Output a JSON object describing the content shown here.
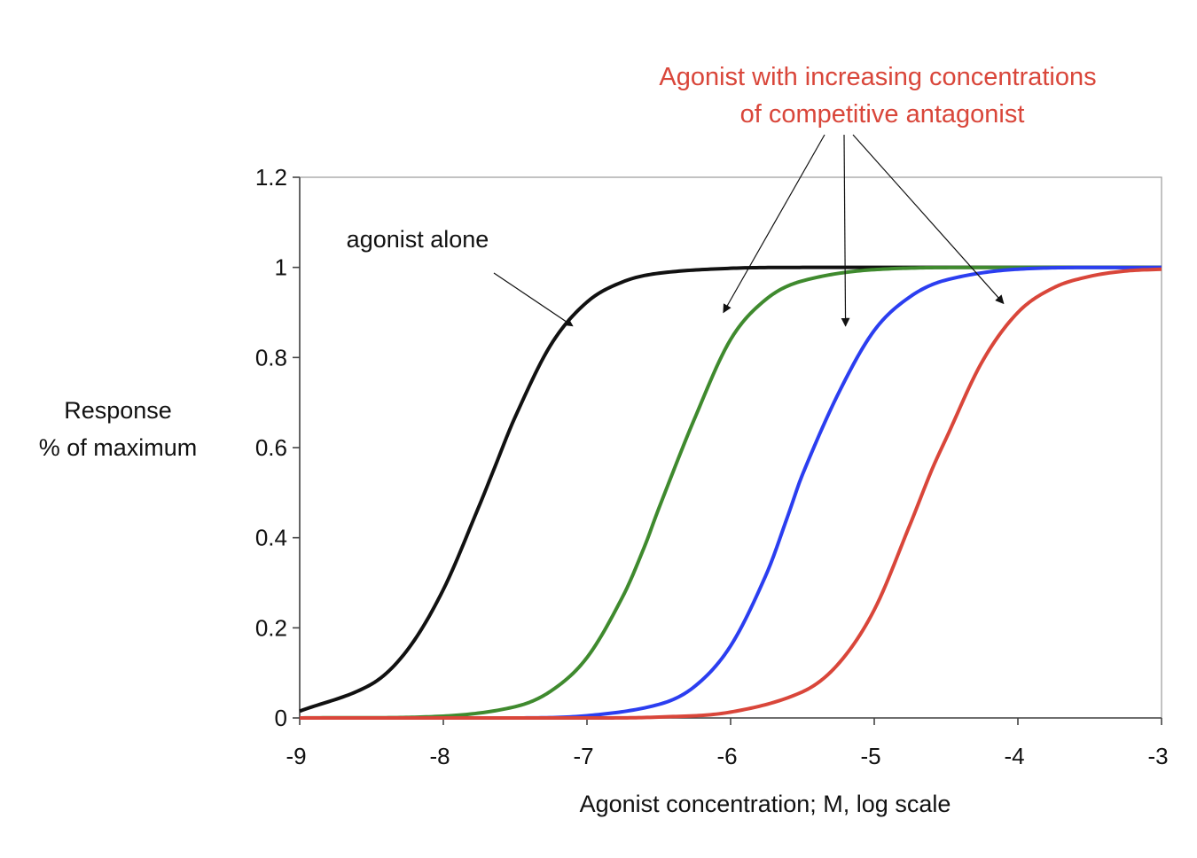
{
  "chart_data": {
    "type": "line",
    "title": "",
    "xlabel": "Agonist concentration; M, log scale",
    "ylabel_lines": [
      "Response",
      "% of maximum"
    ],
    "xlim": [
      -9,
      -3
    ],
    "ylim": [
      0,
      1.2
    ],
    "x_ticks": [
      -9,
      -8,
      -7,
      -6,
      -5,
      -4,
      -3
    ],
    "x_tick_labels": [
      "-9",
      "-8",
      "-7",
      "-6",
      "-5",
      "-4",
      "-3"
    ],
    "y_ticks": [
      0,
      0.2,
      0.4,
      0.6,
      0.8,
      1.0,
      1.2
    ],
    "y_tick_labels": [
      "0",
      "0.2",
      "0.4",
      "0.6",
      "0.8",
      "1",
      "1.2"
    ],
    "grid": false,
    "series": [
      {
        "color": "#111111",
        "x": [
          -9.0,
          -8.5,
          -8.25,
          -8.0,
          -7.75,
          -7.65,
          -7.5,
          -7.25,
          -7.0,
          -6.75,
          -6.5,
          -6.0,
          -5.5,
          -5.0,
          -4.0,
          -3.0
        ],
        "y": [
          0.015,
          0.075,
          0.151,
          0.285,
          0.471,
          0.55,
          0.668,
          0.829,
          0.923,
          0.968,
          0.987,
          0.998,
          1.0,
          1.0,
          1.0,
          1.0
        ]
      },
      {
        "color": "#3f8a2e",
        "x": [
          -9.0,
          -8.0,
          -7.5,
          -7.25,
          -7.0,
          -6.75,
          -6.6,
          -6.5,
          -6.25,
          -6.0,
          -5.75,
          -5.5,
          -5.0,
          -4.0,
          -3.0
        ],
        "y": [
          0.0,
          0.004,
          0.025,
          0.06,
          0.134,
          0.27,
          0.38,
          0.465,
          0.665,
          0.84,
          0.93,
          0.97,
          0.995,
          1.0,
          1.0
        ]
      },
      {
        "color": "#2b3ef0",
        "x": [
          -9.0,
          -7.5,
          -7.0,
          -6.5,
          -6.25,
          -6.0,
          -5.75,
          -5.6,
          -5.5,
          -5.25,
          -5.0,
          -4.75,
          -4.5,
          -4.0,
          -3.0
        ],
        "y": [
          0.0,
          0.0,
          0.005,
          0.03,
          0.07,
          0.16,
          0.32,
          0.45,
          0.54,
          0.72,
          0.86,
          0.935,
          0.972,
          0.996,
          1.0
        ]
      },
      {
        "color": "#d9463a",
        "x": [
          -9.0,
          -7.0,
          -6.5,
          -6.0,
          -5.5,
          -5.25,
          -5.0,
          -4.75,
          -4.6,
          -4.5,
          -4.25,
          -4.0,
          -3.75,
          -3.5,
          -3.25,
          -3.0
        ],
        "y": [
          0.0,
          0.0,
          0.002,
          0.013,
          0.058,
          0.12,
          0.24,
          0.43,
          0.55,
          0.62,
          0.79,
          0.9,
          0.955,
          0.98,
          0.992,
          0.996
        ]
      }
    ],
    "annotations": [
      {
        "lines": [
          "Agonist with increasing concentrations",
          "of competitive antagonist"
        ],
        "color": "#d9463a",
        "arrows_to": [
          [
            -6.05,
            0.9
          ],
          [
            -5.2,
            0.87
          ],
          [
            -4.1,
            0.92
          ]
        ]
      },
      {
        "lines": [
          "agonist alone"
        ],
        "color": "#111111",
        "arrows_to": [
          [
            -7.1,
            0.87
          ]
        ]
      }
    ]
  }
}
